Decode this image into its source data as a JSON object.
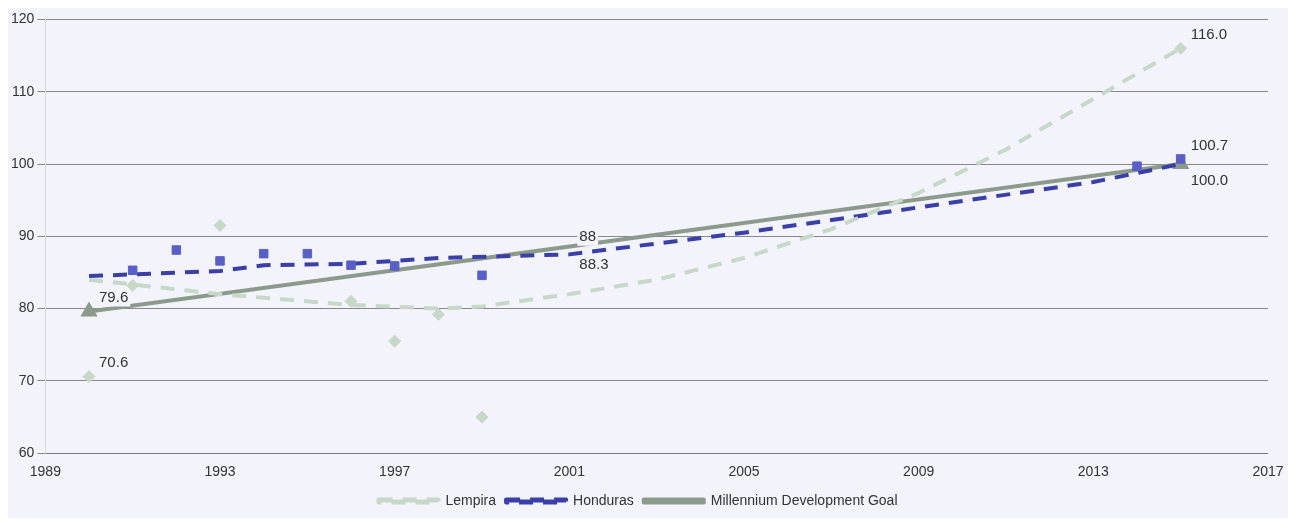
{
  "chart_data": {
    "type": "line",
    "xlim": [
      1989,
      2017
    ],
    "xticks": [
      1989,
      1993,
      1997,
      2001,
      2005,
      2009,
      2013,
      2017
    ],
    "ylim": [
      60,
      120
    ],
    "yticks": [
      60,
      70,
      80,
      90,
      100,
      110,
      120
    ],
    "grid": "y",
    "legend": "bottom",
    "series": [
      {
        "name": "Lempira",
        "color": "#c8d8c8",
        "line_style": "dashed",
        "marker": "none",
        "x": [
          1990,
          1993,
          1996,
          1998,
          1999,
          2001,
          2003,
          2005,
          2007,
          2009,
          2011,
          2013,
          2015
        ],
        "values": [
          84,
          82,
          80.5,
          80,
          80.3,
          82,
          84,
          87,
          91,
          96,
          102,
          109,
          116
        ]
      },
      {
        "name": "Honduras",
        "color": "#3a3fa8",
        "line_style": "dashed",
        "marker": "none",
        "x": [
          1990,
          1993,
          1994,
          1996,
          1998,
          2001,
          2005,
          2009,
          2013,
          2015
        ],
        "values": [
          84.5,
          85.2,
          86,
          86.2,
          87,
          87.5,
          90.5,
          94,
          97.5,
          100
        ]
      },
      {
        "name": "Millennium Development Goal",
        "color": "#8c9a8c",
        "line_style": "solid",
        "marker": "triangle",
        "x": [
          1990,
          2015
        ],
        "values": [
          79.6,
          100
        ]
      },
      {
        "type": "scatter",
        "color": "#c8d8c8",
        "marker": "diamond",
        "x": [
          1990,
          1991,
          1993,
          1996,
          1997,
          1998,
          1999,
          2015
        ],
        "values": [
          70.6,
          83.2,
          91.5,
          81,
          75.5,
          79.2,
          65,
          116
        ]
      },
      {
        "type": "scatter",
        "color": "#5a5fc8",
        "marker": "square",
        "x": [
          1991,
          1992,
          1993,
          1994,
          1995,
          1996,
          1997,
          1999,
          2014,
          2015
        ],
        "values": [
          85.3,
          88.1,
          86.6,
          87.6,
          87.6,
          86,
          85.9,
          84.6,
          99.7,
          100.7
        ]
      }
    ],
    "annotations": [
      {
        "text": "79.6",
        "x": 1990,
        "y": 79.6
      },
      {
        "text": "70.6",
        "x": 1990,
        "y": 70.6
      },
      {
        "text": "88",
        "x": 2001,
        "y": 88
      },
      {
        "text": "88.3",
        "x": 2001,
        "y": 88.3
      },
      {
        "text": "116.0",
        "x": 2015,
        "y": 116
      },
      {
        "text": "100.7",
        "x": 2015,
        "y": 100.7
      },
      {
        "text": "100.0",
        "x": 2015,
        "y": 100
      }
    ]
  }
}
